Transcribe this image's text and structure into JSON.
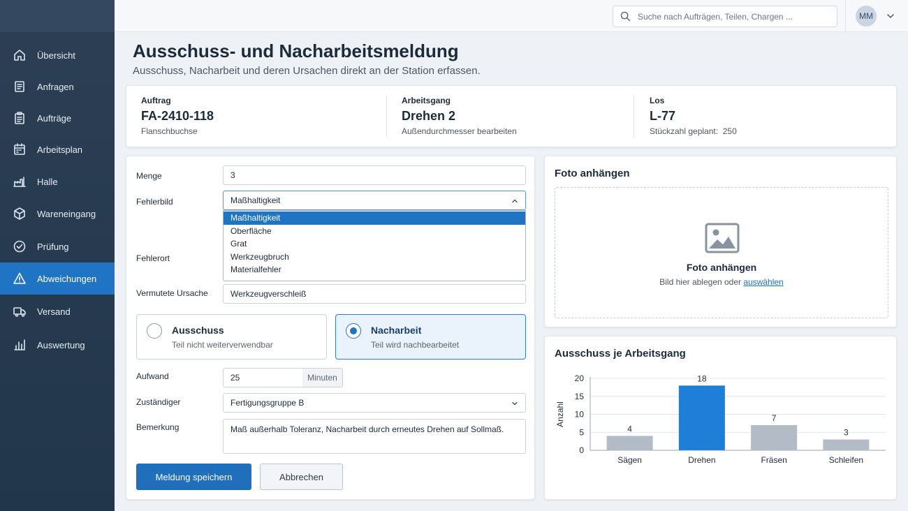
{
  "nav": {
    "items": [
      {
        "label": "Übersicht",
        "icon": "home-icon"
      },
      {
        "label": "Anfragen",
        "icon": "document-icon"
      },
      {
        "label": "Aufträge",
        "icon": "clipboard-icon"
      },
      {
        "label": "Arbeitsplan",
        "icon": "calendar-icon"
      },
      {
        "label": "Halle",
        "icon": "factory-icon"
      },
      {
        "label": "Wareneingang",
        "icon": "box-icon"
      },
      {
        "label": "Prüfung",
        "icon": "check-circle-icon"
      },
      {
        "label": "Abweichungen",
        "icon": "warning-icon",
        "active": true
      },
      {
        "label": "Versand",
        "icon": "truck-icon"
      },
      {
        "label": "Auswertung",
        "icon": "bar-chart-icon"
      }
    ]
  },
  "topbar": {
    "search_placeholder": "Suche nach Aufträgen, Teilen, Chargen ...",
    "user_initials": "MM"
  },
  "page": {
    "title": "Ausschuss- und Nacharbeitsmeldung",
    "subtitle": "Ausschuss, Nacharbeit und deren Ursachen direkt an der Station erfassen."
  },
  "info": {
    "order": {
      "label": "Auftrag",
      "value": "FA-2410-118",
      "desc": "Flanschbuchse"
    },
    "operation": {
      "label": "Arbeitsgang",
      "value": "Drehen 2",
      "desc": "Außendurchmesser bearbeiten"
    },
    "lot": {
      "label": "Los",
      "value": "L-77",
      "desc_label": "Stückzahl geplant:",
      "desc_value": "250"
    }
  },
  "form": {
    "quantity_label": "Menge",
    "quantity_value": "3",
    "defect_label": "Fehlerbild",
    "defect_value": "Maßhaltigkeit",
    "defect_options": [
      "Maßhaltigkeit",
      "Oberfläche",
      "Grat",
      "Werkzeugbruch",
      "Materialfehler"
    ],
    "location_label": "Fehlerort",
    "cause_label": "Vermutete Ursache",
    "cause_value": "Werkzeugverschleiß",
    "type_options": [
      {
        "title": "Ausschuss",
        "desc": "Teil nicht weiterverwendbar",
        "checked": false
      },
      {
        "title": "Nacharbeit",
        "desc": "Teil wird nachbearbeitet",
        "checked": true
      }
    ],
    "effort_label": "Aufwand",
    "effort_value": "25",
    "effort_unit": "Minuten",
    "assignee_label": "Zuständiger",
    "assignee_value": "Fertigungsgruppe B",
    "remark_label": "Bemerkung",
    "remark_value": "Maß außerhalb Toleranz, Nacharbeit durch erneutes Drehen auf Sollmaß.",
    "save_label": "Meldung speichern",
    "cancel_label": "Abbrechen"
  },
  "photo": {
    "title": "Foto anhängen",
    "drop_title": "Foto anhängen",
    "drop_hint": "Bild hier ablegen oder",
    "drop_link": "auswählen"
  },
  "chart_title": "Ausschuss je Arbeitsgang",
  "colors": {
    "sidebar": "#2c3f55",
    "accent": "#1f74c4",
    "bar_highlight": "#1f7fd8",
    "bar_default": "#b3bcc6"
  },
  "chart_data": {
    "type": "bar",
    "title": "Ausschuss je Arbeitsgang",
    "xlabel": "",
    "ylabel": "Anzahl",
    "categories": [
      "Sägen",
      "Drehen",
      "Fräsen",
      "Schleifen"
    ],
    "values": [
      4,
      18,
      7,
      3
    ],
    "highlight": "Drehen",
    "ylim": [
      0,
      20
    ],
    "yticks": [
      0,
      5,
      10,
      15,
      20
    ],
    "grid": true,
    "data_labels": true
  }
}
